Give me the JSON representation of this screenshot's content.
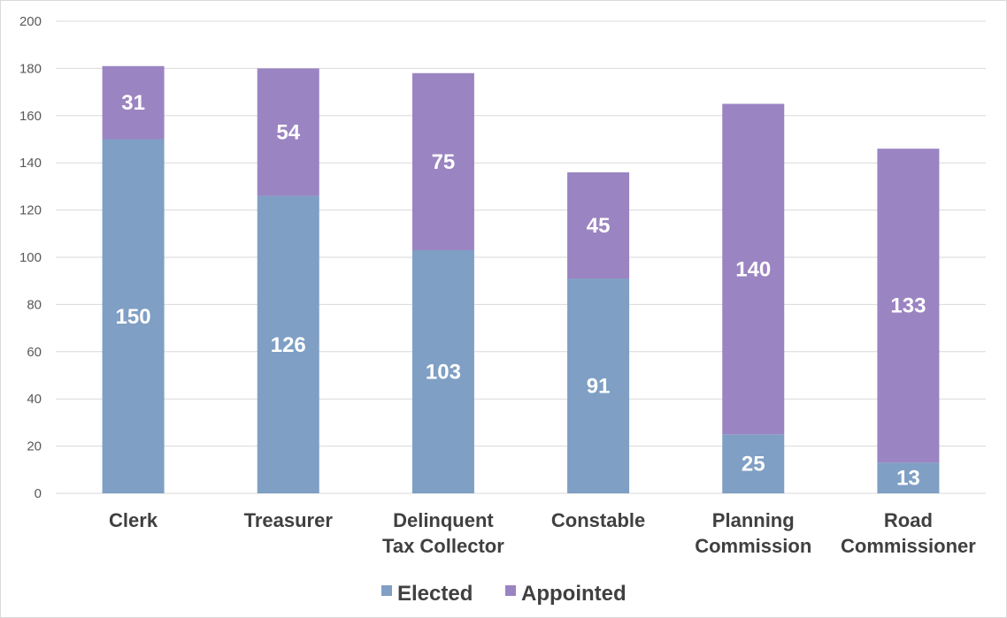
{
  "chart_data": {
    "type": "bar",
    "stacked": true,
    "categories": [
      [
        "Clerk"
      ],
      [
        "Treasurer"
      ],
      [
        "Delinquent",
        "Tax Collector"
      ],
      [
        "Constable"
      ],
      [
        "Planning",
        "Commission"
      ],
      [
        "Road",
        "Commissioner"
      ]
    ],
    "series": [
      {
        "name": "Elected",
        "color": "#7f9fc4",
        "values": [
          150,
          126,
          103,
          91,
          25,
          13
        ]
      },
      {
        "name": "Appointed",
        "color": "#9b84c2",
        "values": [
          31,
          54,
          75,
          45,
          140,
          133
        ]
      }
    ],
    "ylim": [
      0,
      200
    ],
    "yticks": [
      0,
      20,
      40,
      60,
      80,
      100,
      120,
      140,
      160,
      180,
      200
    ],
    "grid": true,
    "legend_position": "bottom",
    "gridline_color": "#d9d9d9"
  }
}
